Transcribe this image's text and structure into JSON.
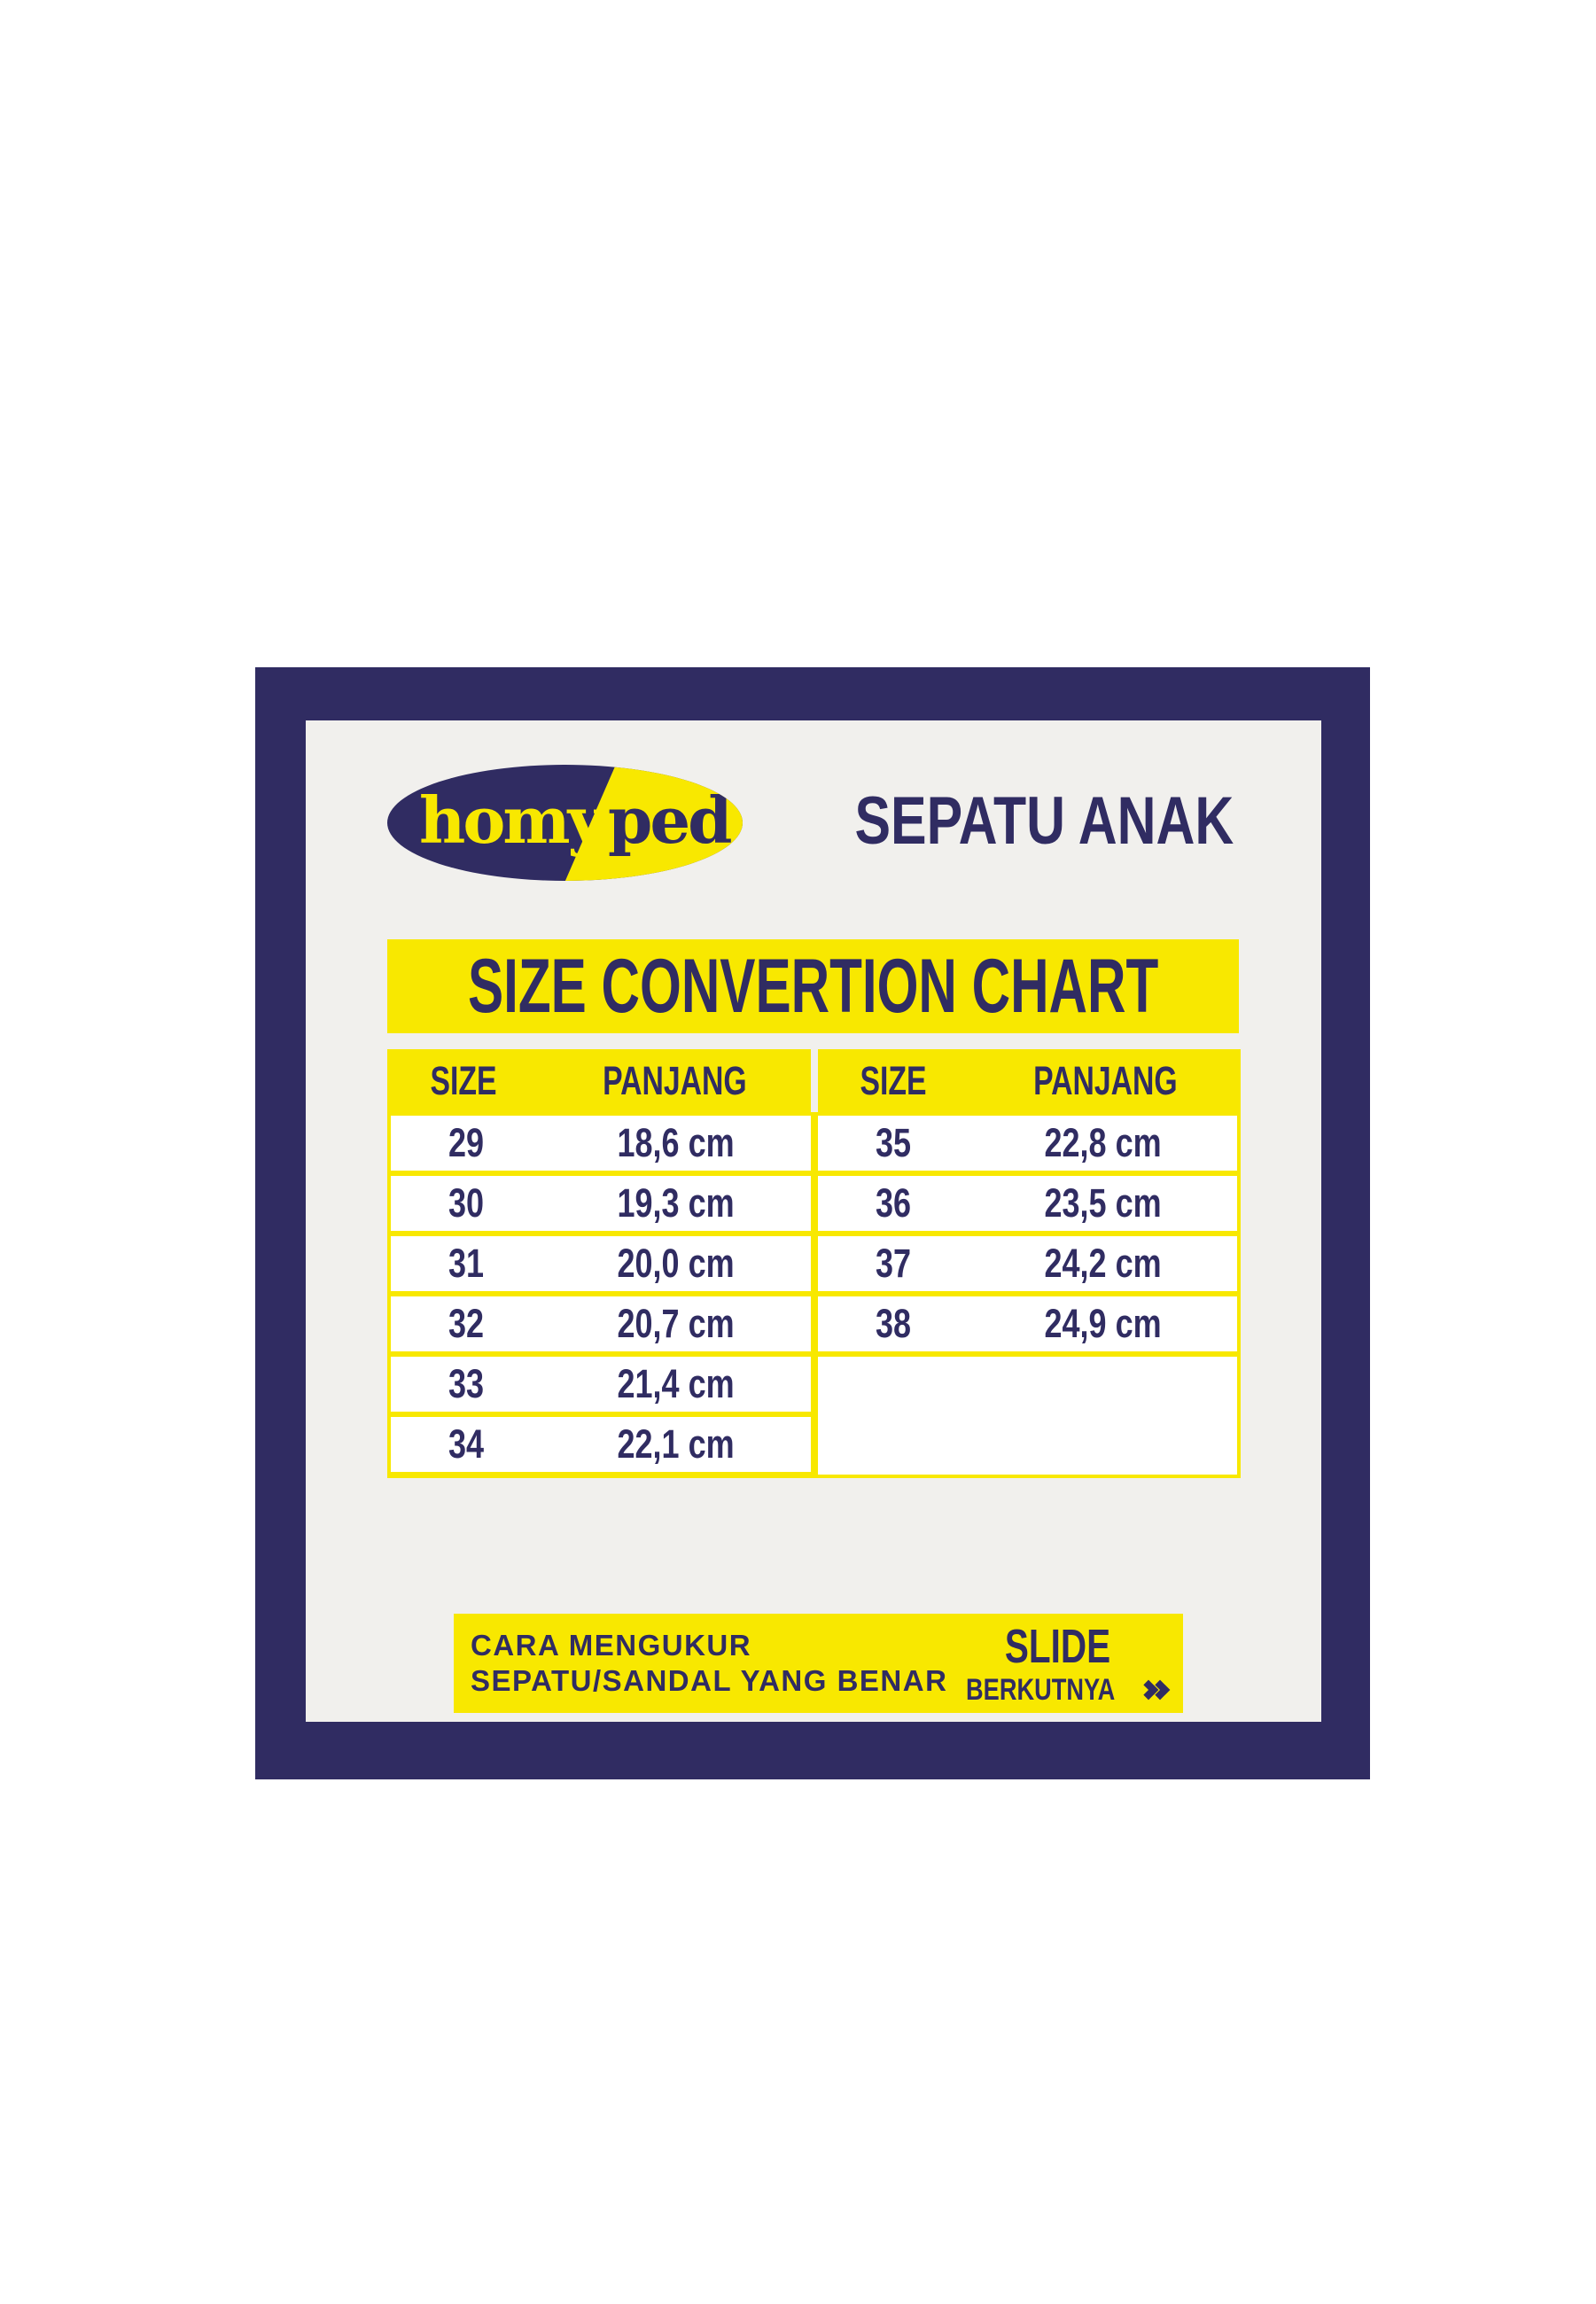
{
  "colors": {
    "navy": "#302c62",
    "yellow": "#f8e800",
    "panel": "#f1f0ed",
    "cell": "#ffffff"
  },
  "logo": {
    "homy": "homy",
    "ped": "ped"
  },
  "header": {
    "title": "SEPATU ANAK"
  },
  "title_banner": {
    "text": "SIZE CONVERTION CHART"
  },
  "table": {
    "header_columns": [
      "SIZE",
      "PANJANG",
      "SIZE",
      "PANJANG"
    ],
    "left_rows": [
      {
        "size": "29",
        "panjang": "18,6 cm"
      },
      {
        "size": "30",
        "panjang": "19,3 cm"
      },
      {
        "size": "31",
        "panjang": "20,0 cm"
      },
      {
        "size": "32",
        "panjang": "20,7 cm"
      },
      {
        "size": "33",
        "panjang": "21,4 cm"
      },
      {
        "size": "34",
        "panjang": "22,1 cm"
      }
    ],
    "right_rows": [
      {
        "size": "35",
        "panjang": "22,8 cm"
      },
      {
        "size": "36",
        "panjang": "23,5 cm"
      },
      {
        "size": "37",
        "panjang": "24,2 cm"
      },
      {
        "size": "38",
        "panjang": "24,9 cm"
      }
    ]
  },
  "footer": {
    "line1": "CARA MENGUKUR",
    "line2": "SEPATU/SANDAL YANG BENAR",
    "slide_label": "SLIDE",
    "next_label": "BERKUTNYA"
  },
  "chart_data": {
    "type": "table",
    "title": "SIZE CONVERTION CHART",
    "columns": [
      "SIZE",
      "PANJANG",
      "SIZE",
      "PANJANG"
    ],
    "rows": [
      [
        "29",
        "18,6 cm",
        "35",
        "22,8 cm"
      ],
      [
        "30",
        "19,3 cm",
        "36",
        "23,5 cm"
      ],
      [
        "31",
        "20,0 cm",
        "37",
        "24,2 cm"
      ],
      [
        "32",
        "20,7 cm",
        "38",
        "24,9 cm"
      ],
      [
        "33",
        "21,4 cm",
        "",
        ""
      ],
      [
        "34",
        "22,1 cm",
        "",
        ""
      ]
    ]
  }
}
